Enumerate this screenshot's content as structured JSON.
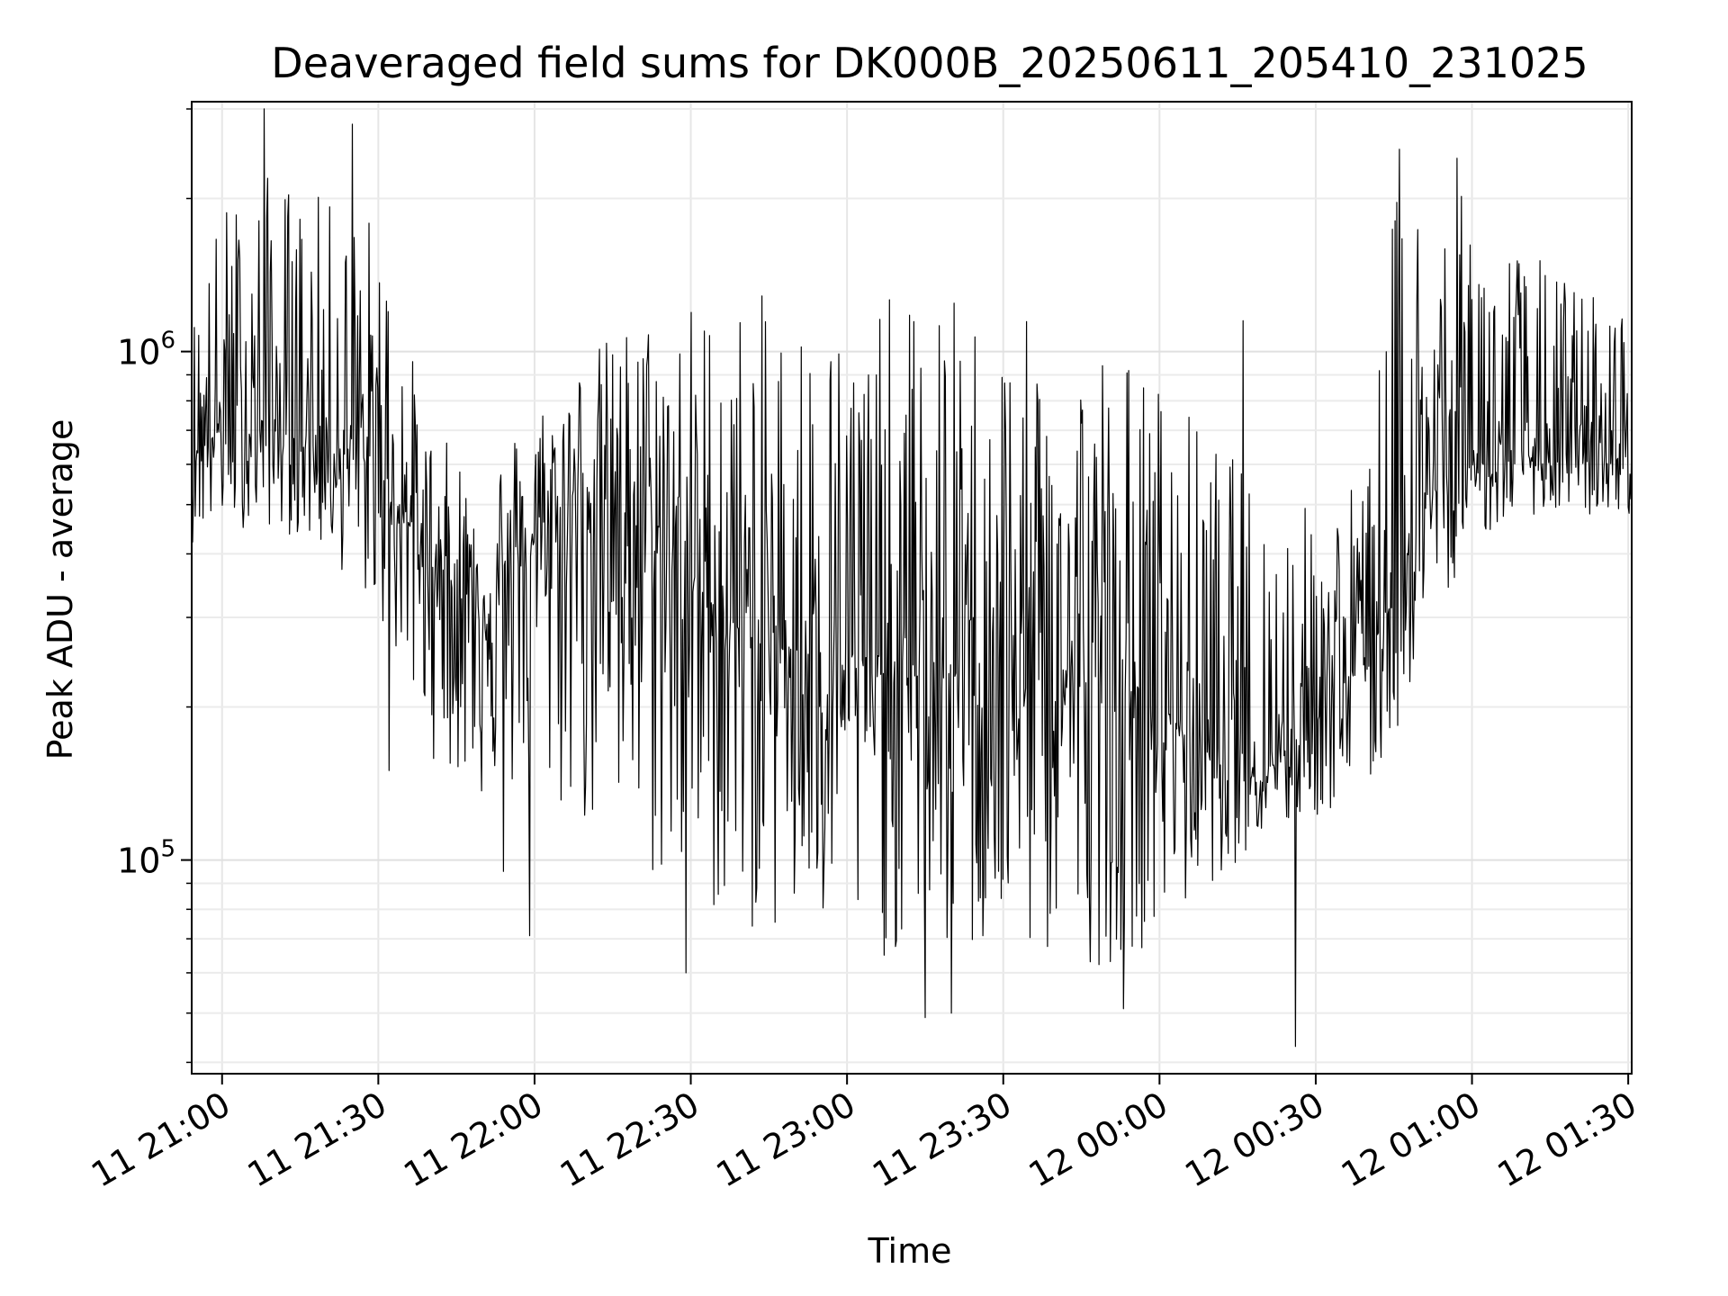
{
  "chart_data": {
    "type": "line",
    "title": "Deaveraged field sums for DK000B_20250611_205410_231025",
    "xlabel": "Time",
    "ylabel": "Peak ADU - average",
    "yscale": "log",
    "ylim": [
      38000,
      3100000
    ],
    "xlim": [
      "2025-06-11 20:54:10",
      "2025-06-12 01:30:40"
    ],
    "x_ticks": [
      {
        "time": "2025-06-11 21:00:00",
        "label": "11 21:00"
      },
      {
        "time": "2025-06-11 21:30:00",
        "label": "11 21:30"
      },
      {
        "time": "2025-06-11 22:00:00",
        "label": "11 22:00"
      },
      {
        "time": "2025-06-11 22:30:00",
        "label": "11 22:30"
      },
      {
        "time": "2025-06-11 23:00:00",
        "label": "11 23:00"
      },
      {
        "time": "2025-06-11 23:30:00",
        "label": "11 23:30"
      },
      {
        "time": "2025-06-12 00:00:00",
        "label": "12 00:00"
      },
      {
        "time": "2025-06-12 00:30:00",
        "label": "12 00:30"
      },
      {
        "time": "2025-06-12 01:00:00",
        "label": "12 01:00"
      },
      {
        "time": "2025-06-12 01:30:00",
        "label": "12 01:30"
      }
    ],
    "y_ticks": [
      {
        "value": 100000,
        "base": "10",
        "exp": "5"
      },
      {
        "value": 1000000,
        "base": "10",
        "exp": "6"
      }
    ],
    "grid": true,
    "line_color": "#000000",
    "series_envelope": {
      "x": [
        "2025-06-11 20:54:10",
        "2025-06-11 21:00:00",
        "2025-06-11 21:10:00",
        "2025-06-11 21:20:00",
        "2025-06-11 21:30:00",
        "2025-06-11 21:40:00",
        "2025-06-11 21:50:00",
        "2025-06-11 22:00:00",
        "2025-06-11 22:10:00",
        "2025-06-11 22:20:00",
        "2025-06-11 22:30:00",
        "2025-06-11 22:40:00",
        "2025-06-11 22:50:00",
        "2025-06-11 23:00:00",
        "2025-06-11 23:10:00",
        "2025-06-11 23:20:00",
        "2025-06-11 23:30:00",
        "2025-06-11 23:40:00",
        "2025-06-11 23:50:00",
        "2025-06-12 00:00:00",
        "2025-06-12 00:10:00",
        "2025-06-12 00:20:00",
        "2025-06-12 00:30:00",
        "2025-06-12 00:40:00",
        "2025-06-12 00:46:00",
        "2025-06-12 00:50:00",
        "2025-06-12 01:00:00",
        "2025-06-12 01:10:00",
        "2025-06-12 01:20:00",
        "2025-06-12 01:30:40"
      ],
      "high": [
        1200000,
        2000000,
        2300000,
        2000000,
        1900000,
        700000,
        600000,
        800000,
        1000000,
        1200000,
        1300000,
        1300000,
        1300000,
        1200000,
        1300000,
        1300000,
        1200000,
        1100000,
        1100000,
        900000,
        700000,
        550000,
        500000,
        600000,
        2400000,
        2200000,
        2000000,
        1600000,
        1400000,
        1200000
      ],
      "typical": [
        650000,
        700000,
        700000,
        650000,
        600000,
        380000,
        320000,
        420000,
        550000,
        450000,
        350000,
        280000,
        260000,
        240000,
        230000,
        230000,
        240000,
        230000,
        220000,
        200000,
        160000,
        150000,
        190000,
        260000,
        350000,
        500000,
        600000,
        620000,
        600000,
        620000
      ],
      "low": [
        420000,
        450000,
        450000,
        400000,
        300000,
        160000,
        130000,
        130000,
        110000,
        90000,
        80000,
        72000,
        68000,
        65000,
        63000,
        62000,
        63000,
        62000,
        62000,
        70000,
        90000,
        110000,
        120000,
        130000,
        180000,
        260000,
        420000,
        480000,
        470000,
        480000
      ]
    },
    "notable_extremes": [
      {
        "time": "2025-06-11 21:08:00",
        "value": 3000000
      },
      {
        "time": "2025-06-11 21:25:00",
        "value": 2800000
      },
      {
        "time": "2025-06-11 21:32:00",
        "value": 150000
      },
      {
        "time": "2025-06-11 21:54:00",
        "value": 95000
      },
      {
        "time": "2025-06-11 21:59:00",
        "value": 71000
      },
      {
        "time": "2025-06-11 22:29:00",
        "value": 60000
      },
      {
        "time": "2025-06-11 23:15:00",
        "value": 49000
      },
      {
        "time": "2025-06-11 23:20:00",
        "value": 50000
      },
      {
        "time": "2025-06-11 23:53:00",
        "value": 51000
      },
      {
        "time": "2025-06-12 00:16:00",
        "value": 1150000
      },
      {
        "time": "2025-06-12 00:26:00",
        "value": 43000
      },
      {
        "time": "2025-06-12 00:46:00",
        "value": 2500000
      },
      {
        "time": "2025-06-12 00:57:00",
        "value": 2400000
      }
    ]
  }
}
